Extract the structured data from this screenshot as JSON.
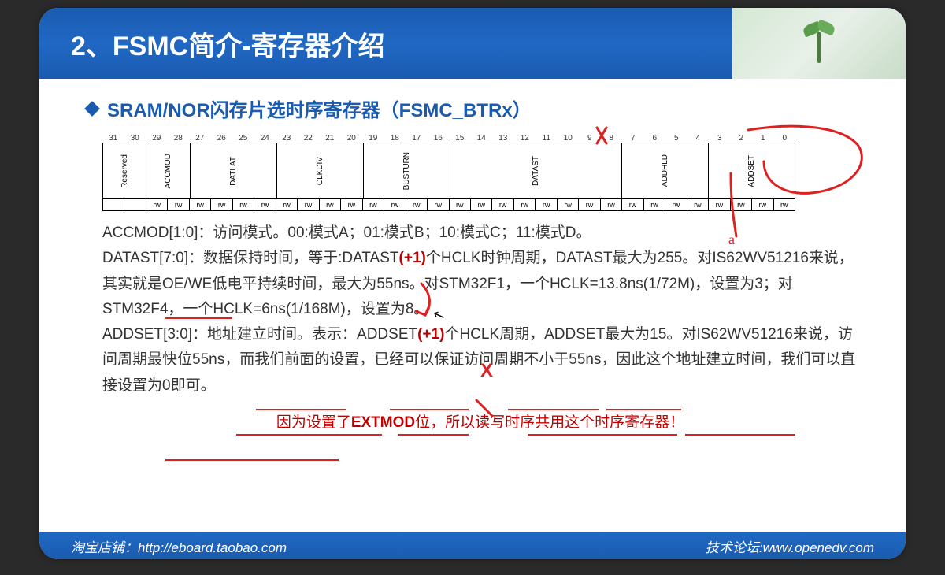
{
  "header": {
    "title": "2、FSMC简介-寄存器介绍"
  },
  "section": {
    "title": "SRAM/NOR闪存片选时序寄存器（FSMC_BTRx）"
  },
  "register": {
    "bits": [
      "31",
      "30",
      "29",
      "28",
      "27",
      "26",
      "25",
      "24",
      "23",
      "22",
      "21",
      "20",
      "19",
      "18",
      "17",
      "16",
      "15",
      "14",
      "13",
      "12",
      "11",
      "10",
      "9",
      "8",
      "7",
      "6",
      "5",
      "4",
      "3",
      "2",
      "1",
      "0"
    ],
    "fields": [
      {
        "label": "Reserved",
        "span": 2
      },
      {
        "label": "ACCMOD",
        "span": 2
      },
      {
        "label": "DATLAT",
        "span": 4
      },
      {
        "label": "CLKDIV",
        "span": 4
      },
      {
        "label": "BUSTURN",
        "span": 4
      },
      {
        "label": "DATAST",
        "span": 8
      },
      {
        "label": "ADDHLD",
        "span": 4
      },
      {
        "label": "ADDSET",
        "span": 4
      }
    ],
    "rw": [
      "",
      "",
      "rw",
      "rw",
      "rw",
      "rw",
      "rw",
      "rw",
      "rw",
      "rw",
      "rw",
      "rw",
      "rw",
      "rw",
      "rw",
      "rw",
      "rw",
      "rw",
      "rw",
      "rw",
      "rw",
      "rw",
      "rw",
      "rw",
      "rw",
      "rw",
      "rw",
      "rw",
      "rw",
      "rw",
      "rw",
      "rw"
    ]
  },
  "body": {
    "line1a": "ACCMOD[1:0]：访问模式。00:模式A；01:模式B；10:模式C；11:模式D。",
    "line2a": "DATAST[7:0]：数据保持时间，等于:DATAST",
    "line2plus": "(+1)",
    "line2b": "个HCLK时钟周期，DATAST最大为255。对IS62WV51216来说，其实就是OE/WE低电平持续时间，最大为55ns。对STM32F1，一个HCLK=13.8ns(1/72M)，设置为3；对STM32F4，一个HCLK=6ns(1/168M)，设置为8。",
    "line3a": "ADDSET[3:0]：地址建立时间。表示：ADDSET",
    "line3plus": "(+1)",
    "line3b": "个HCLK周期，ADDSET最大为15。对IS62WV51216来说，访问周期最快位55ns，而我们前面的设置，已经可以保证访问周期不小于55ns，因此这个地址建立时间，我们可以直接设置为0即可。"
  },
  "note": "因为设置了EXTMOD位，所以读写时序共用这个时序寄存器！",
  "note_prefix": "EXTMOD",
  "footer": {
    "left": "淘宝店铺：http://eboard.taobao.com",
    "right": "技术论坛:www.openedv.com"
  },
  "colors": {
    "header_bg": "#1a5bb0",
    "accent": "#1a5bb0",
    "red": "#c00000",
    "anno_red": "#e02020"
  }
}
